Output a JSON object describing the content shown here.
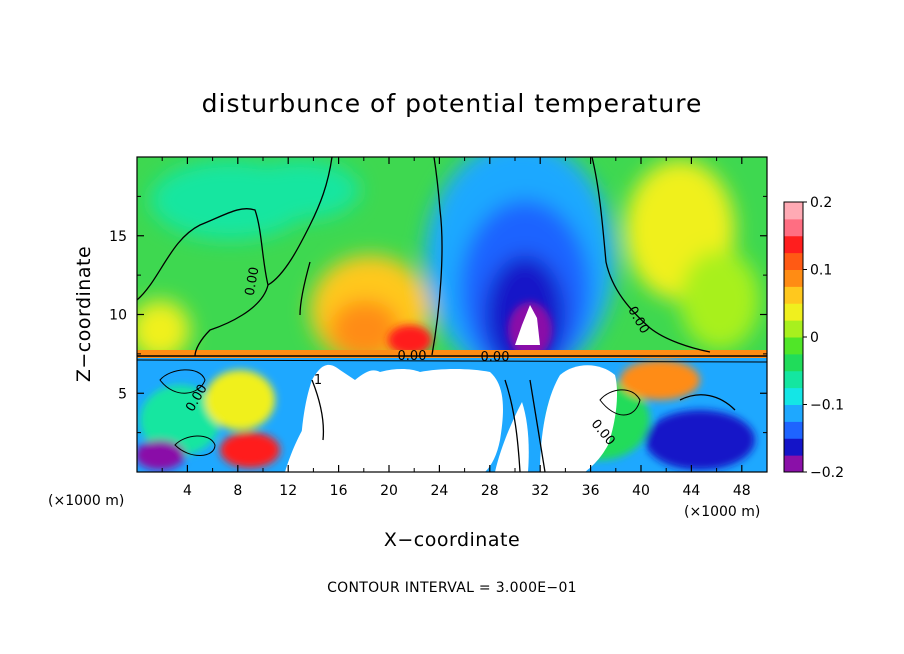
{
  "chart_data": {
    "type": "heatmap",
    "title": "disturbunce of potential temperature",
    "xlabel": "X−coordinate",
    "ylabel": "Z−coordinate",
    "x_unit_left": "(×1000 m)",
    "x_unit_right": "(×1000 m)",
    "xlim": [
      0,
      50
    ],
    "ylim": [
      0,
      20
    ],
    "x_ticks": [
      4,
      8,
      12,
      16,
      20,
      24,
      28,
      32,
      36,
      40,
      44,
      48
    ],
    "y_ticks": [
      5,
      10,
      15
    ],
    "colorbar": {
      "range": [
        -0.2,
        0.2
      ],
      "tick_values": [
        0.2,
        0.1,
        0,
        -0.1,
        -0.2
      ],
      "tick_labels": [
        "0.2",
        "0.1",
        "0",
        "−0.1",
        "−0.2"
      ],
      "colors": [
        "#8a10a8",
        "#1414c8",
        "#1e64ff",
        "#1ea8ff",
        "#14e6e6",
        "#14e6a0",
        "#20dc5a",
        "#50e628",
        "#a8f01e",
        "#f0f01e",
        "#ffc81e",
        "#ff8c14",
        "#ff5a14",
        "#ff1e1e",
        "#ff6e82",
        "#ffaab4"
      ]
    },
    "contour_interval": "CONTOUR INTERVAL = 3.000E−01",
    "contour_labels": [
      "0.00",
      "0.00",
      "0.00",
      "0.00",
      "0.00",
      "0.00",
      "1"
    ],
    "interface_height": 7.2,
    "features": [
      {
        "x": 20.5,
        "z": 10.5,
        "value": 0.15
      },
      {
        "x": 31.5,
        "z": 11.5,
        "value": -0.2
      },
      {
        "x": 46,
        "z": 16,
        "value": 0.06
      }
    ]
  }
}
